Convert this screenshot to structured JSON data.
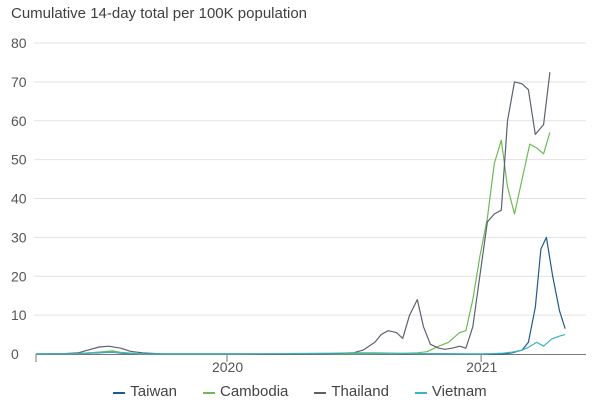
{
  "chart_data": {
    "type": "line",
    "title": "Cumulative 14-day total per 100K population",
    "xlabel": "",
    "ylabel": "",
    "ylim": [
      0,
      80
    ],
    "yticks": [
      0,
      10,
      20,
      30,
      40,
      50,
      60,
      70,
      80
    ],
    "xlim": [
      "2019-04-01",
      "2021-06-01"
    ],
    "xticks": [
      {
        "label": "2020",
        "date": "2020-01-01"
      },
      {
        "label": "2021",
        "date": "2021-01-01"
      }
    ],
    "grid": true,
    "legend_position": "bottom",
    "series": [
      {
        "name": "Taiwan",
        "color": "#1f5a8c",
        "points": [
          [
            "2019-04-01",
            0
          ],
          [
            "2019-06-01",
            0.1
          ],
          [
            "2019-07-01",
            0.3
          ],
          [
            "2019-07-20",
            0.5
          ],
          [
            "2019-08-01",
            0.2
          ],
          [
            "2019-09-01",
            0
          ],
          [
            "2020-01-01",
            0
          ],
          [
            "2020-06-01",
            0
          ],
          [
            "2020-10-01",
            0.1
          ],
          [
            "2020-12-01",
            0
          ],
          [
            "2021-01-01",
            0
          ],
          [
            "2021-02-01",
            0
          ],
          [
            "2021-02-15",
            0.3
          ],
          [
            "2021-03-01",
            1
          ],
          [
            "2021-03-10",
            3
          ],
          [
            "2021-03-20",
            12
          ],
          [
            "2021-03-28",
            27
          ],
          [
            "2021-04-05",
            30
          ],
          [
            "2021-04-14",
            20
          ],
          [
            "2021-04-24",
            11
          ],
          [
            "2021-05-02",
            6.5
          ]
        ]
      },
      {
        "name": "Cambodia",
        "color": "#6dbb55",
        "points": [
          [
            "2019-04-01",
            0
          ],
          [
            "2019-06-01",
            0.1
          ],
          [
            "2019-07-01",
            0.5
          ],
          [
            "2019-07-20",
            0.8
          ],
          [
            "2019-08-01",
            0.4
          ],
          [
            "2019-09-01",
            0
          ],
          [
            "2020-01-01",
            0
          ],
          [
            "2020-06-01",
            0
          ],
          [
            "2020-09-01",
            0.1
          ],
          [
            "2020-10-01",
            0.3
          ],
          [
            "2020-10-15",
            0.6
          ],
          [
            "2020-11-01",
            2
          ],
          [
            "2020-11-15",
            3
          ],
          [
            "2020-12-01",
            5.5
          ],
          [
            "2020-12-10",
            6
          ],
          [
            "2020-12-20",
            14
          ],
          [
            "2020-12-30",
            25
          ],
          [
            "2021-01-10",
            35
          ],
          [
            "2021-01-20",
            49
          ],
          [
            "2021-01-30",
            55
          ],
          [
            "2021-02-08",
            43
          ],
          [
            "2021-02-18",
            36
          ],
          [
            "2021-03-01",
            45
          ],
          [
            "2021-03-12",
            54
          ],
          [
            "2021-03-22",
            53
          ],
          [
            "2021-04-01",
            51.5
          ],
          [
            "2021-04-10",
            57
          ]
        ]
      },
      {
        "name": "Thailand",
        "color": "#5a6270",
        "points": [
          [
            "2019-04-01",
            0
          ],
          [
            "2019-05-01",
            0
          ],
          [
            "2019-06-01",
            0.3
          ],
          [
            "2019-06-15",
            1
          ],
          [
            "2019-07-01",
            1.8
          ],
          [
            "2019-07-15",
            2
          ],
          [
            "2019-08-01",
            1.5
          ],
          [
            "2019-08-15",
            0.7
          ],
          [
            "2019-09-01",
            0.3
          ],
          [
            "2019-10-01",
            0
          ],
          [
            "2020-01-01",
            0
          ],
          [
            "2020-03-01",
            0
          ],
          [
            "2020-06-01",
            0.1
          ],
          [
            "2020-07-01",
            0.3
          ],
          [
            "2020-07-15",
            1
          ],
          [
            "2020-08-01",
            3
          ],
          [
            "2020-08-10",
            5
          ],
          [
            "2020-08-20",
            6
          ],
          [
            "2020-09-01",
            5.5
          ],
          [
            "2020-09-10",
            4
          ],
          [
            "2020-09-20",
            10
          ],
          [
            "2020-10-01",
            14
          ],
          [
            "2020-10-10",
            7
          ],
          [
            "2020-10-20",
            2.5
          ],
          [
            "2020-11-01",
            1.5
          ],
          [
            "2020-11-10",
            1.2
          ],
          [
            "2020-11-20",
            1.5
          ],
          [
            "2020-12-01",
            2
          ],
          [
            "2020-12-10",
            1.5
          ],
          [
            "2020-12-20",
            7
          ],
          [
            "2020-12-30",
            20
          ],
          [
            "2021-01-10",
            34
          ],
          [
            "2021-01-20",
            36
          ],
          [
            "2021-01-30",
            37
          ],
          [
            "2021-02-08",
            60
          ],
          [
            "2021-02-18",
            70
          ],
          [
            "2021-03-01",
            69.5
          ],
          [
            "2021-03-10",
            68
          ],
          [
            "2021-03-20",
            56.5
          ],
          [
            "2021-04-01",
            59
          ],
          [
            "2021-04-10",
            72.5
          ]
        ]
      },
      {
        "name": "Vietnam",
        "color": "#3fb3c1",
        "points": [
          [
            "2019-04-01",
            0
          ],
          [
            "2019-06-01",
            0.1
          ],
          [
            "2019-07-01",
            0.4
          ],
          [
            "2019-07-20",
            0.5
          ],
          [
            "2019-08-01",
            0.3
          ],
          [
            "2019-09-01",
            0
          ],
          [
            "2020-01-01",
            0
          ],
          [
            "2020-06-01",
            0.2
          ],
          [
            "2020-07-01",
            0.3
          ],
          [
            "2020-08-01",
            0.3
          ],
          [
            "2020-09-01",
            0.2
          ],
          [
            "2020-10-01",
            0.1
          ],
          [
            "2021-01-01",
            0
          ],
          [
            "2021-02-01",
            0.2
          ],
          [
            "2021-02-15",
            0.5
          ],
          [
            "2021-03-01",
            1
          ],
          [
            "2021-03-10",
            1.7
          ],
          [
            "2021-03-22",
            3
          ],
          [
            "2021-04-01",
            2
          ],
          [
            "2021-04-12",
            3.8
          ],
          [
            "2021-04-24",
            4.6
          ],
          [
            "2021-05-02",
            5
          ]
        ]
      }
    ]
  }
}
